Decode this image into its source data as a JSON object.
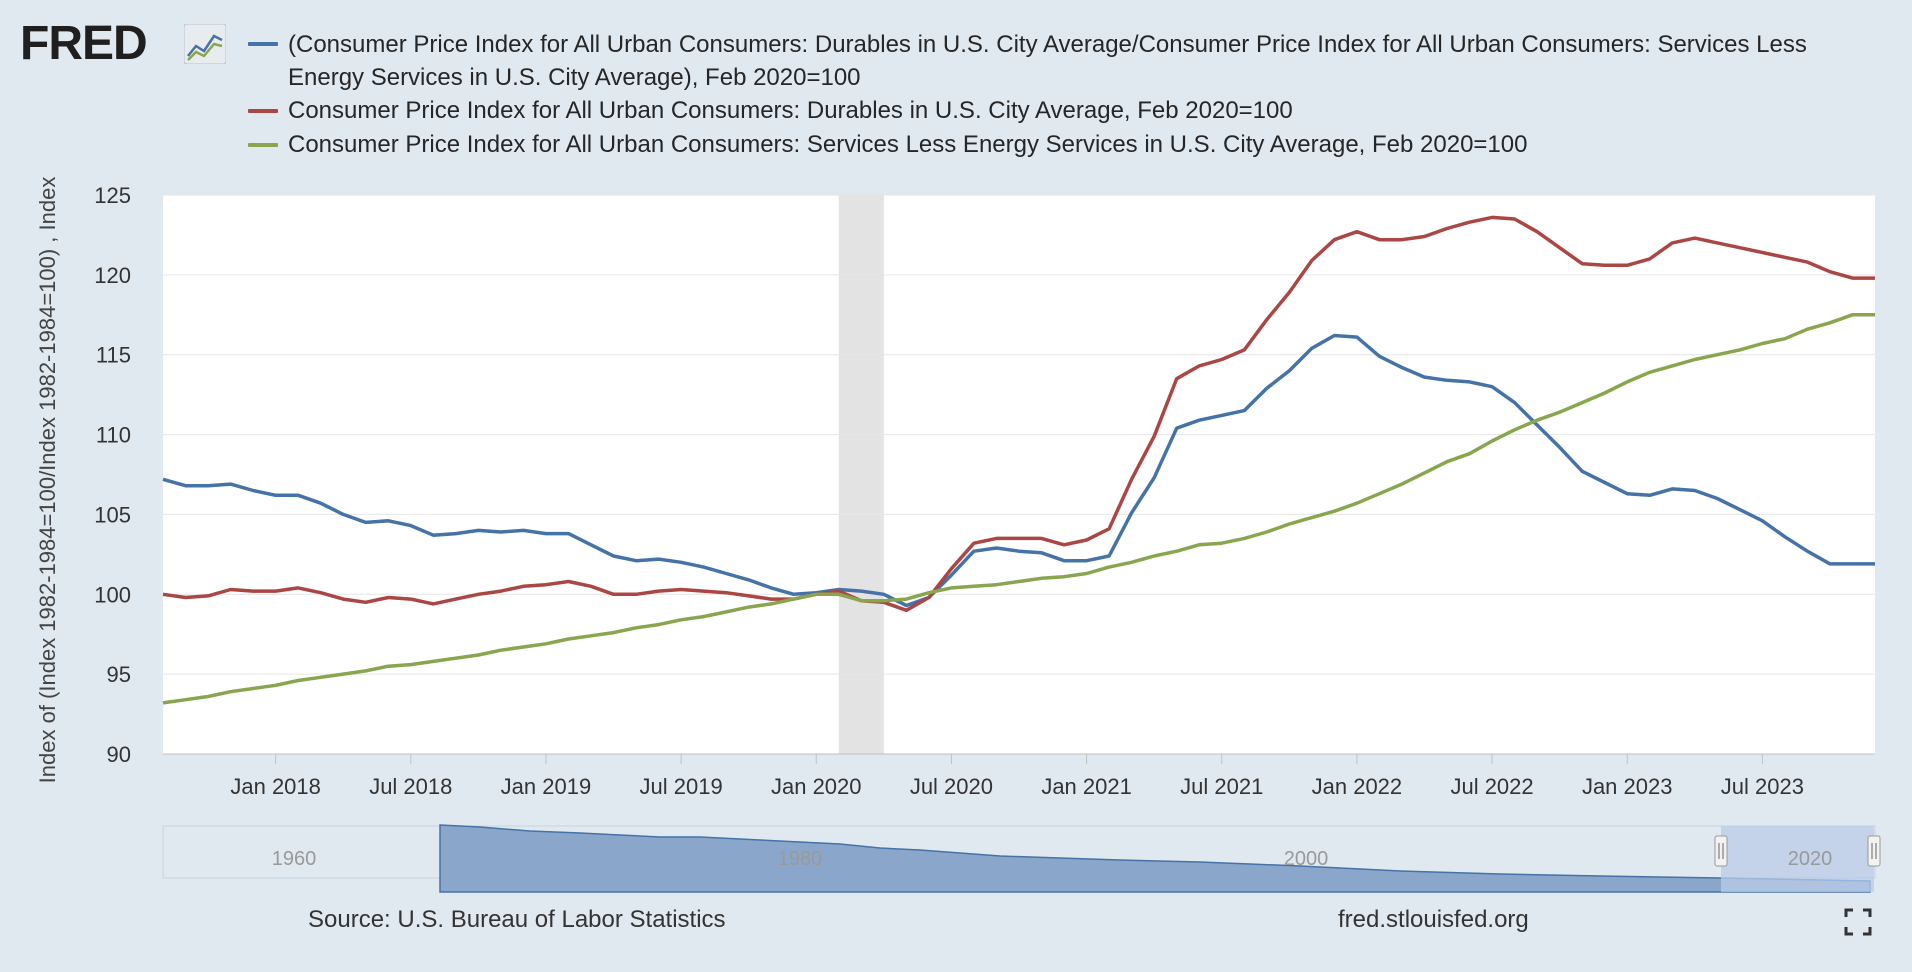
{
  "header": {
    "logo_text": "FRED",
    "logo_icon": "line-chart-icon"
  },
  "legend": [
    {
      "label": "(Consumer Price Index for All Urban Consumers: Durables in U.S. City Average/Consumer Price Index for All Urban Consumers: Services Less Energy Services in U.S. City Average), Feb 2020=100",
      "color": "#4572a7"
    },
    {
      "label": "Consumer Price Index for All Urban Consumers: Durables in U.S. City Average, Feb 2020=100",
      "color": "#aa4643"
    },
    {
      "label": "Consumer Price Index for All Urban Consumers: Services Less Energy Services in U.S. City Average, Feb 2020=100",
      "color": "#89a54e"
    }
  ],
  "chart_data": {
    "type": "line",
    "ylabel": "Index of (Index 1982-1984=100/Index 1982-1984=100) , Index",
    "ylim": [
      90,
      125
    ],
    "yticks": [
      90,
      95,
      100,
      105,
      110,
      115,
      120,
      125
    ],
    "xlim": [
      "2017-08",
      "2023-12"
    ],
    "xticks": [
      "Jan 2018",
      "Jul 2018",
      "Jan 2019",
      "Jul 2019",
      "Jan 2020",
      "Jul 2020",
      "Jan 2021",
      "Jul 2021",
      "Jan 2022",
      "Jul 2022",
      "Jan 2023",
      "Jul 2023"
    ],
    "grid": true,
    "recession": {
      "start": "2020-02",
      "end": "2020-04"
    },
    "series": [
      {
        "name": "(Consumer Price Index for All Urban Consumers: Durables in U.S. City Average/Consumer Price Index for All Urban Consumers: Services Less Energy Services in U.S. City Average), Feb 2020=100",
        "color": "#4572a7",
        "x": [
          "2017-08",
          "2017-09",
          "2017-10",
          "2017-11",
          "2017-12",
          "2018-01",
          "2018-02",
          "2018-03",
          "2018-04",
          "2018-05",
          "2018-06",
          "2018-07",
          "2018-08",
          "2018-09",
          "2018-10",
          "2018-11",
          "2018-12",
          "2019-01",
          "2019-02",
          "2019-03",
          "2019-04",
          "2019-05",
          "2019-06",
          "2019-07",
          "2019-08",
          "2019-09",
          "2019-10",
          "2019-11",
          "2019-12",
          "2020-01",
          "2020-02",
          "2020-03",
          "2020-04",
          "2020-05",
          "2020-06",
          "2020-07",
          "2020-08",
          "2020-09",
          "2020-10",
          "2020-11",
          "2020-12",
          "2021-01",
          "2021-02",
          "2021-03",
          "2021-04",
          "2021-05",
          "2021-06",
          "2021-07",
          "2021-08",
          "2021-09",
          "2021-10",
          "2021-11",
          "2021-12",
          "2022-01",
          "2022-02",
          "2022-03",
          "2022-04",
          "2022-05",
          "2022-06",
          "2022-07",
          "2022-08",
          "2022-09",
          "2022-10",
          "2022-11",
          "2022-12",
          "2023-01",
          "2023-02",
          "2023-03",
          "2023-04",
          "2023-05",
          "2023-06",
          "2023-07",
          "2023-08",
          "2023-09",
          "2023-10",
          "2023-11",
          "2023-12"
        ],
        "values": [
          107.2,
          106.8,
          106.8,
          106.9,
          106.5,
          106.2,
          106.2,
          105.7,
          105.0,
          104.5,
          104.6,
          104.3,
          103.7,
          103.8,
          104.0,
          103.9,
          104.0,
          103.8,
          103.8,
          103.1,
          102.4,
          102.1,
          102.2,
          102.0,
          101.7,
          101.3,
          100.9,
          100.4,
          100.0,
          100.1,
          100.3,
          100.2,
          100.0,
          99.3,
          99.8,
          101.2,
          102.7,
          102.9,
          102.7,
          102.6,
          102.1,
          102.1,
          102.4,
          105.1,
          107.3,
          110.4,
          110.9,
          111.2,
          111.5,
          112.9,
          114.0,
          115.4,
          116.2,
          116.1,
          114.9,
          114.2,
          113.6,
          113.4,
          113.3,
          113.0,
          112.0,
          110.6,
          109.2,
          107.7,
          107.0,
          106.3,
          106.2,
          106.6,
          106.5,
          106.0,
          105.3,
          104.6,
          103.6,
          102.7,
          101.9,
          101.9,
          101.9
        ]
      },
      {
        "name": "Consumer Price Index for All Urban Consumers: Durables in U.S. City Average, Feb 2020=100",
        "color": "#aa4643",
        "x": [
          "2017-08",
          "2017-09",
          "2017-10",
          "2017-11",
          "2017-12",
          "2018-01",
          "2018-02",
          "2018-03",
          "2018-04",
          "2018-05",
          "2018-06",
          "2018-07",
          "2018-08",
          "2018-09",
          "2018-10",
          "2018-11",
          "2018-12",
          "2019-01",
          "2019-02",
          "2019-03",
          "2019-04",
          "2019-05",
          "2019-06",
          "2019-07",
          "2019-08",
          "2019-09",
          "2019-10",
          "2019-11",
          "2019-12",
          "2020-01",
          "2020-02",
          "2020-03",
          "2020-04",
          "2020-05",
          "2020-06",
          "2020-07",
          "2020-08",
          "2020-09",
          "2020-10",
          "2020-11",
          "2020-12",
          "2021-01",
          "2021-02",
          "2021-03",
          "2021-04",
          "2021-05",
          "2021-06",
          "2021-07",
          "2021-08",
          "2021-09",
          "2021-10",
          "2021-11",
          "2021-12",
          "2022-01",
          "2022-02",
          "2022-03",
          "2022-04",
          "2022-05",
          "2022-06",
          "2022-07",
          "2022-08",
          "2022-09",
          "2022-10",
          "2022-11",
          "2022-12",
          "2023-01",
          "2023-02",
          "2023-03",
          "2023-04",
          "2023-05",
          "2023-06",
          "2023-07",
          "2023-08",
          "2023-09",
          "2023-10",
          "2023-11",
          "2023-12"
        ],
        "values": [
          100.0,
          99.8,
          99.9,
          100.3,
          100.2,
          100.2,
          100.4,
          100.1,
          99.7,
          99.5,
          99.8,
          99.7,
          99.4,
          99.7,
          100.0,
          100.2,
          100.5,
          100.6,
          100.8,
          100.5,
          100.0,
          100.0,
          100.2,
          100.3,
          100.2,
          100.1,
          99.9,
          99.7,
          99.7,
          100.0,
          100.2,
          99.6,
          99.5,
          99.0,
          99.8,
          101.6,
          103.2,
          103.5,
          103.5,
          103.5,
          103.1,
          103.4,
          104.1,
          107.2,
          109.9,
          113.5,
          114.3,
          114.7,
          115.3,
          117.2,
          118.9,
          120.9,
          122.2,
          122.7,
          122.2,
          122.2,
          122.4,
          122.9,
          123.3,
          123.6,
          123.5,
          122.7,
          121.7,
          120.7,
          120.6,
          120.6,
          121.0,
          122.0,
          122.3,
          122.0,
          121.7,
          121.4,
          121.1,
          120.8,
          120.2,
          119.8,
          119.8
        ]
      },
      {
        "name": "Consumer Price Index for All Urban Consumers: Services Less Energy Services in U.S. City Average, Feb 2020=100",
        "color": "#89a54e",
        "x": [
          "2017-08",
          "2017-09",
          "2017-10",
          "2017-11",
          "2017-12",
          "2018-01",
          "2018-02",
          "2018-03",
          "2018-04",
          "2018-05",
          "2018-06",
          "2018-07",
          "2018-08",
          "2018-09",
          "2018-10",
          "2018-11",
          "2018-12",
          "2019-01",
          "2019-02",
          "2019-03",
          "2019-04",
          "2019-05",
          "2019-06",
          "2019-07",
          "2019-08",
          "2019-09",
          "2019-10",
          "2019-11",
          "2019-12",
          "2020-01",
          "2020-02",
          "2020-03",
          "2020-04",
          "2020-05",
          "2020-06",
          "2020-07",
          "2020-08",
          "2020-09",
          "2020-10",
          "2020-11",
          "2020-12",
          "2021-01",
          "2021-02",
          "2021-03",
          "2021-04",
          "2021-05",
          "2021-06",
          "2021-07",
          "2021-08",
          "2021-09",
          "2021-10",
          "2021-11",
          "2021-12",
          "2022-01",
          "2022-02",
          "2022-03",
          "2022-04",
          "2022-05",
          "2022-06",
          "2022-07",
          "2022-08",
          "2022-09",
          "2022-10",
          "2022-11",
          "2022-12",
          "2023-01",
          "2023-02",
          "2023-03",
          "2023-04",
          "2023-05",
          "2023-06",
          "2023-07",
          "2023-08",
          "2023-09",
          "2023-10",
          "2023-11",
          "2023-12"
        ],
        "values": [
          93.2,
          93.4,
          93.6,
          93.9,
          94.1,
          94.3,
          94.6,
          94.8,
          95.0,
          95.2,
          95.5,
          95.6,
          95.8,
          96.0,
          96.2,
          96.5,
          96.7,
          96.9,
          97.2,
          97.4,
          97.6,
          97.9,
          98.1,
          98.4,
          98.6,
          98.9,
          99.2,
          99.4,
          99.7,
          100.0,
          100.0,
          99.6,
          99.6,
          99.7,
          100.1,
          100.4,
          100.5,
          100.6,
          100.8,
          101.0,
          101.1,
          101.3,
          101.7,
          102.0,
          102.4,
          102.7,
          103.1,
          103.2,
          103.5,
          103.9,
          104.4,
          104.8,
          105.2,
          105.7,
          106.3,
          106.9,
          107.6,
          108.3,
          108.8,
          109.6,
          110.3,
          110.9,
          111.4,
          112.0,
          112.6,
          113.3,
          113.9,
          114.3,
          114.7,
          115.0,
          115.3,
          115.7,
          116.0,
          116.6,
          117.0,
          117.5,
          117.5
        ]
      }
    ]
  },
  "navigator": {
    "labels": [
      "1960",
      "1980",
      "2000",
      "2020"
    ]
  },
  "footer": {
    "source": "Source: U.S. Bureau of Labor Statistics",
    "site": "fred.stlouisfed.org",
    "fullscreen_icon": "fullscreen-icon"
  }
}
